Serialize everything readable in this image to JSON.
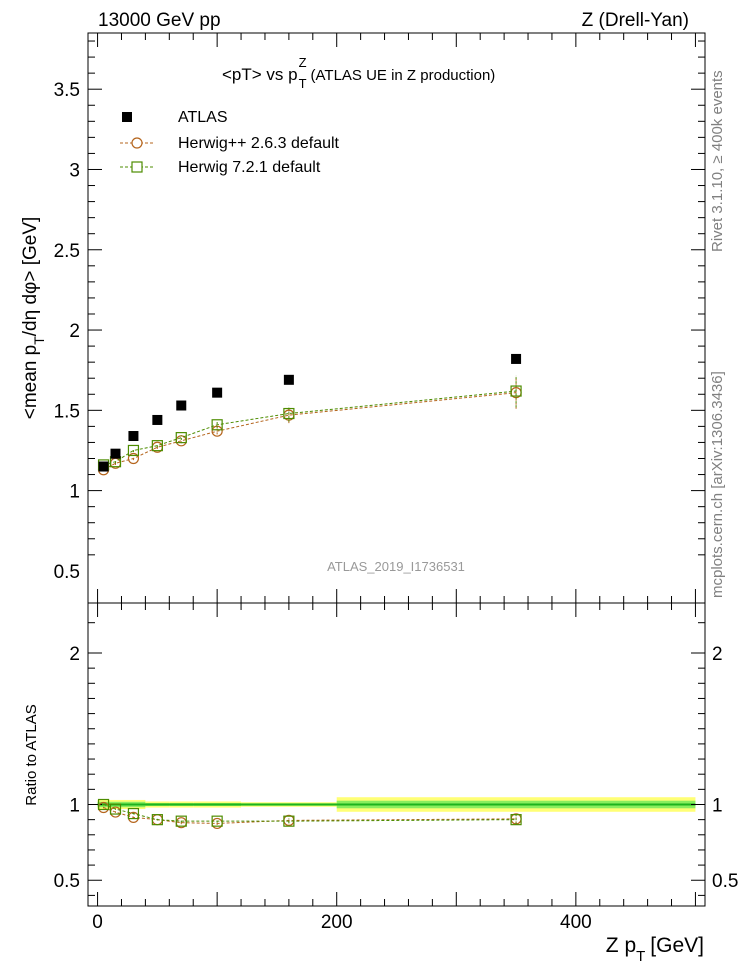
{
  "header": {
    "left": "13000 GeV pp",
    "right": "Z (Drell-Yan)"
  },
  "side_labels": {
    "rivet": "Rivet 3.1.10, ≥ 400k events",
    "mcplots": "mcplots.cern.ch [arXiv:1306.3436]"
  },
  "chart_data": {
    "type": "scatter",
    "title": {
      "main": "<pT> vs p",
      "sub": "T",
      "sup": "Z",
      "tail": "(ATLAS UE in Z production)"
    },
    "watermark": "ATLAS_2019_I1736531",
    "xlabel": {
      "main": "Z p",
      "sub": "T",
      "tail": "[GeV]"
    },
    "ylabel": {
      "a": "<mean p",
      "sub1": "T",
      "b": "/dη dφ> [GeV]"
    },
    "ratio_ylabel": "Ratio to ATLAS",
    "xlim": [
      -8,
      508
    ],
    "ylim": [
      0.3,
      3.85
    ],
    "ratio_ylim": [
      0.33,
      2.33
    ],
    "x_ticks": [
      0,
      200,
      400
    ],
    "x_tick_labels": [
      "0",
      "200",
      "400"
    ],
    "y_ticks": [
      0.5,
      1,
      1.5,
      2,
      2.5,
      3,
      3.5
    ],
    "y_tick_labels": [
      "0.5",
      "1",
      "1.5",
      "2",
      "2.5",
      "3",
      "3.5"
    ],
    "ratio_y_ticks": [
      0.5,
      1,
      2
    ],
    "ratio_y_tick_labels": [
      "0.5",
      "1",
      "2"
    ],
    "x": [
      5,
      15,
      30,
      50,
      70,
      100,
      160,
      350
    ],
    "band_bins": [
      {
        "x0": 0,
        "x1": 10,
        "inner": 0.018,
        "outer": 0.03
      },
      {
        "x0": 10,
        "x1": 20,
        "inner": 0.018,
        "outer": 0.03
      },
      {
        "x0": 20,
        "x1": 40,
        "inner": 0.018,
        "outer": 0.03
      },
      {
        "x0": 40,
        "x1": 60,
        "inner": 0.01,
        "outer": 0.02
      },
      {
        "x0": 60,
        "x1": 80,
        "inner": 0.01,
        "outer": 0.02
      },
      {
        "x0": 80,
        "x1": 120,
        "inner": 0.01,
        "outer": 0.02
      },
      {
        "x0": 120,
        "x1": 200,
        "inner": 0.008,
        "outer": 0.015
      },
      {
        "x0": 200,
        "x1": 500,
        "inner": 0.025,
        "outer": 0.048
      }
    ],
    "series": [
      {
        "name": "ATLAS",
        "marker": "square-filled",
        "color": "#000000",
        "values": [
          1.15,
          1.23,
          1.34,
          1.44,
          1.53,
          1.61,
          1.69,
          1.82
        ],
        "ratio": [
          1,
          1,
          1,
          1,
          1,
          1,
          1,
          1
        ]
      },
      {
        "name": "Herwig++ 2.6.3 default",
        "marker": "circle-open",
        "color": "#b5651d",
        "values": [
          1.13,
          1.17,
          1.2,
          1.27,
          1.31,
          1.37,
          1.47,
          1.61
        ],
        "errors": [
          0.01,
          0.01,
          0.01,
          0.01,
          0.015,
          0.02,
          0.05,
          0.1
        ],
        "ratio": [
          0.98,
          0.95,
          0.915,
          0.9,
          0.88,
          0.875,
          0.895,
          0.905
        ],
        "ratio_errors": [
          0.005,
          0.005,
          0.005,
          0.005,
          0.01,
          0.01,
          0.015,
          0.03
        ]
      },
      {
        "name": "Herwig 7.2.1 default",
        "marker": "square-open",
        "color": "#4d8c00",
        "values": [
          1.16,
          1.18,
          1.25,
          1.28,
          1.33,
          1.41,
          1.48,
          1.62
        ],
        "errors": [
          0.01,
          0.01,
          0.01,
          0.01,
          0.015,
          0.02,
          0.05,
          0.1
        ],
        "ratio": [
          1,
          0.97,
          0.94,
          0.9,
          0.89,
          0.89,
          0.89,
          0.9
        ],
        "ratio_errors": [
          0.005,
          0.005,
          0.005,
          0.005,
          0.01,
          0.01,
          0.015,
          0.03
        ]
      }
    ]
  }
}
